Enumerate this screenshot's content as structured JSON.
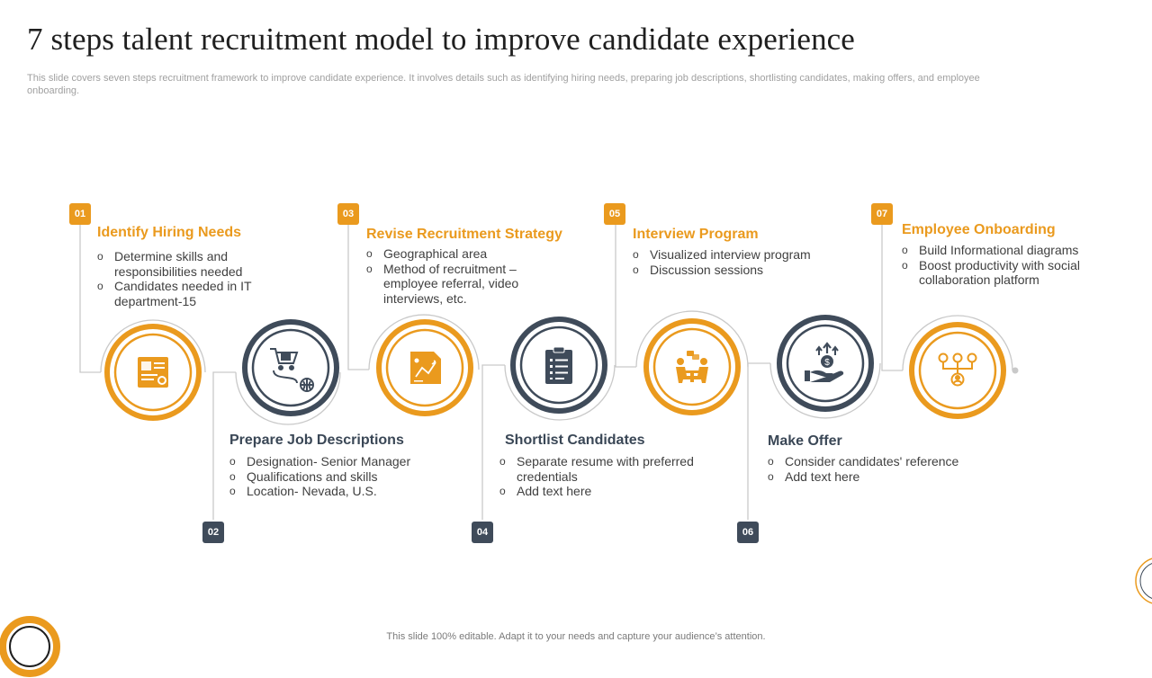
{
  "title": "7 steps talent recruitment model to improve candidate experience",
  "subtitle": "This slide covers seven steps recruitment framework to improve candidate experience. It involves details such as identifying hiring needs, preparing job descriptions, shortlisting candidates, making offers, and employee onboarding.",
  "footer": "This slide 100% editable. Adapt it to your needs and capture your audience’s attention.",
  "colors": {
    "accent": "#ea9a1e",
    "dark": "#3f4b5a",
    "connector": "#c9c9c9"
  },
  "steps": [
    {
      "number": "01",
      "title": "Identify Hiring Needs",
      "icon": "resume-card-icon",
      "bullets": [
        "Determine skills and responsibilities needed",
        "Candidates needed in IT department-15"
      ]
    },
    {
      "number": "02",
      "title": "Prepare Job Descriptions",
      "icon": "cart-globe-icon",
      "bullets": [
        "Designation- Senior Manager",
        "Qualifications and skills",
        "Location- Nevada, U.S."
      ]
    },
    {
      "number": "03",
      "title": "Revise Recruitment Strategy",
      "icon": "strategy-document-icon",
      "bullets": [
        "Geographical area",
        "Method of recruitment – employee referral, video interviews, etc."
      ]
    },
    {
      "number": "04",
      "title": "Shortlist Candidates",
      "icon": "clipboard-checklist-icon",
      "bullets": [
        "Separate resume  with preferred credentials",
        "Add text here"
      ]
    },
    {
      "number": "05",
      "title": "Interview Program",
      "icon": "interview-meeting-icon",
      "bullets": [
        "Visualized interview program",
        "Discussion sessions"
      ]
    },
    {
      "number": "06",
      "title": "Make Offer",
      "icon": "hand-money-icon",
      "bullets": [
        "Consider candidates' reference",
        "Add text here"
      ]
    },
    {
      "number": "07",
      "title": "Employee Onboarding",
      "icon": "org-network-icon",
      "bullets": [
        "Build Informational diagrams",
        "Boost productivity  with social collaboration platform"
      ]
    }
  ]
}
